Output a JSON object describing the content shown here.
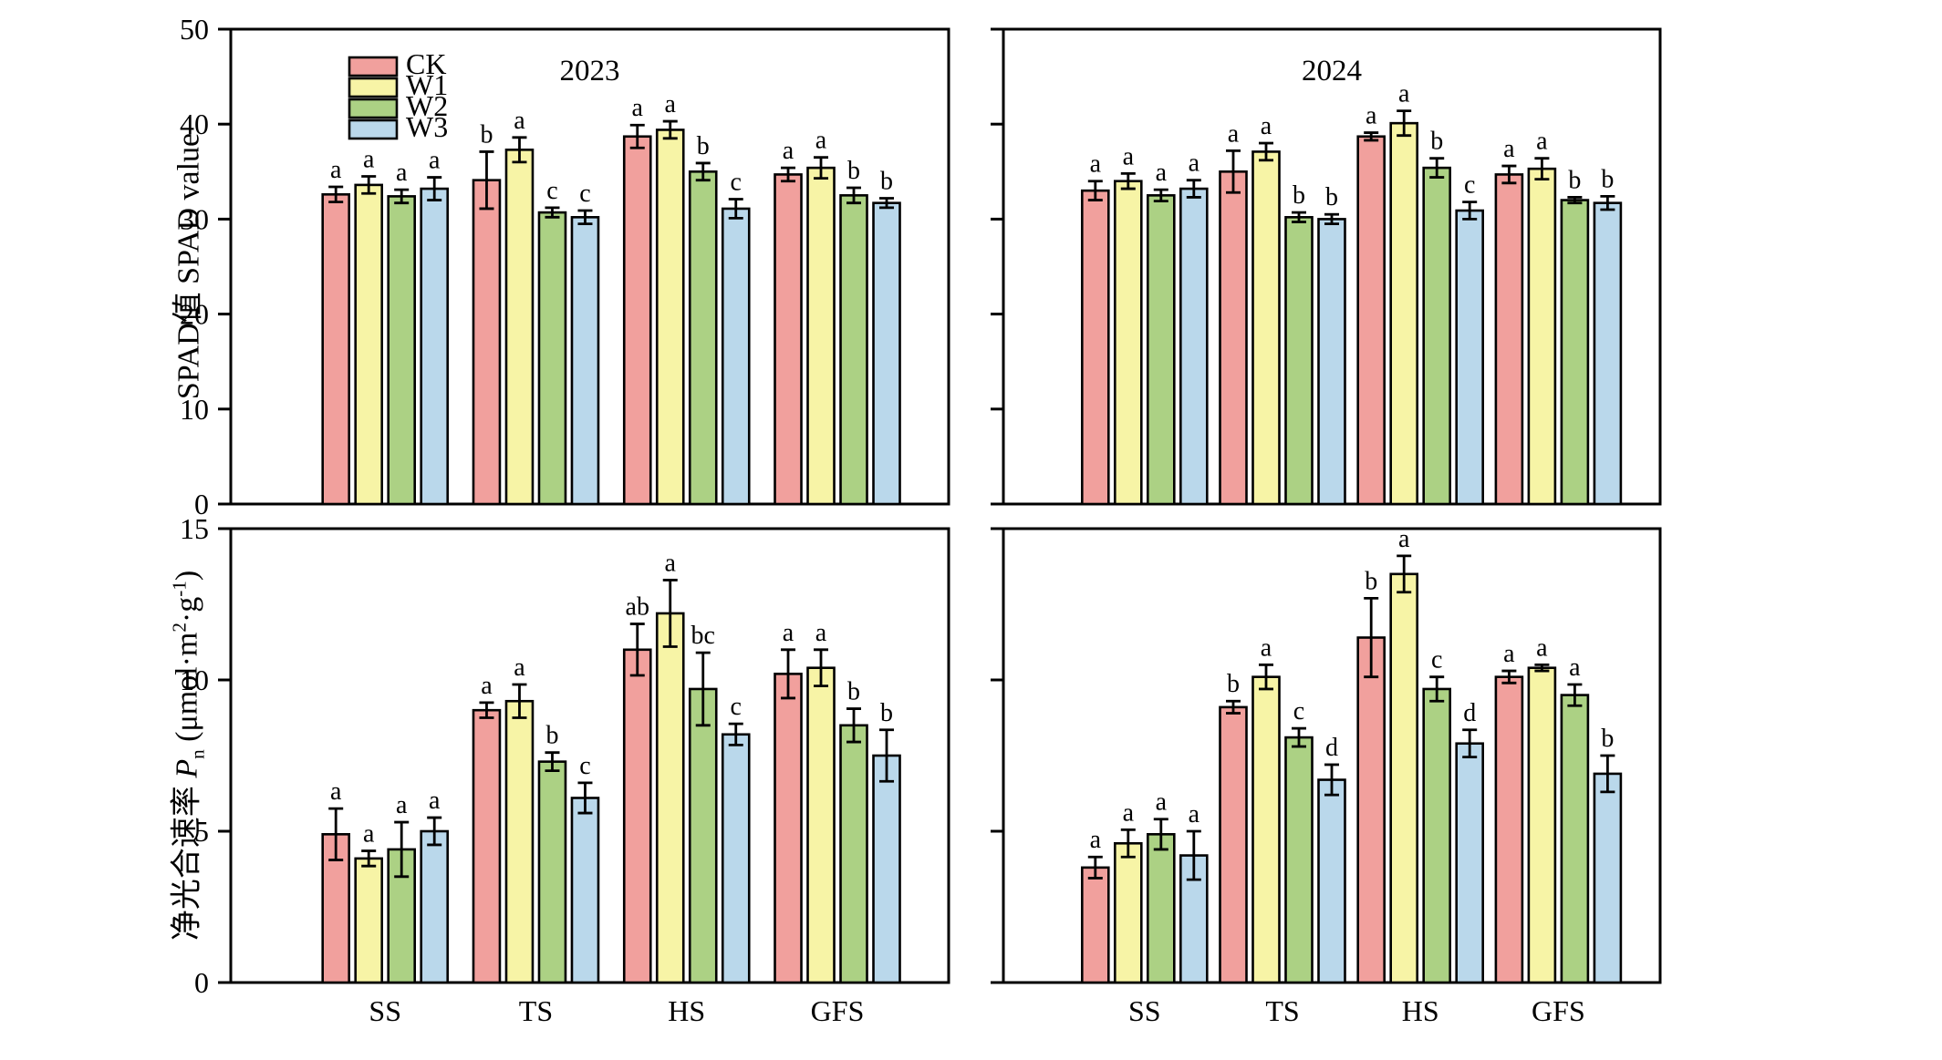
{
  "figure": {
    "ylabel_top": "SPAD值 SPAD value",
    "ylabel_bottom": {
      "prefix": "净光合速率 ",
      "var": "P",
      "var_sub": "n",
      "unit1": " (μmol·m",
      "sup1": "2",
      "unit2": "·g",
      "sup2": "-1",
      "close": ")"
    },
    "legend": {
      "items": [
        {
          "label": "CK",
          "color": "#F1A09D"
        },
        {
          "label": "W1",
          "color": "#F7F4A6"
        },
        {
          "label": "W2",
          "color": "#ACD184"
        },
        {
          "label": "W3",
          "color": "#BAD8EB"
        }
      ]
    },
    "outline_color": "#000000"
  },
  "chart_data": [
    {
      "panel_id": "spad-2023",
      "type": "bar",
      "title": "2023",
      "ylabel": "SPAD值 SPAD value",
      "ylim": [
        0,
        50
      ],
      "yticks": [
        0,
        10,
        20,
        30,
        40,
        50
      ],
      "show_ytick_labels": true,
      "show_xcat_labels": false,
      "legend_position": "upper-left-inside",
      "grid": false,
      "categories": [
        "SS",
        "TS",
        "HS",
        "GFS"
      ],
      "series": [
        {
          "name": "CK",
          "color": "#F1A09D",
          "values": [
            32.6,
            34.1,
            38.7,
            34.7
          ],
          "errors": [
            0.8,
            3.0,
            1.2,
            0.7
          ],
          "letters": [
            "a",
            "b",
            "a",
            "a"
          ]
        },
        {
          "name": "W1",
          "color": "#F7F4A6",
          "values": [
            33.6,
            37.3,
            39.4,
            35.4
          ],
          "errors": [
            0.9,
            1.3,
            0.9,
            1.1
          ],
          "letters": [
            "a",
            "a",
            "a",
            "a"
          ]
        },
        {
          "name": "W2",
          "color": "#ACD184",
          "values": [
            32.4,
            30.7,
            35.0,
            32.5
          ],
          "errors": [
            0.7,
            0.5,
            0.9,
            0.8
          ],
          "letters": [
            "a",
            "c",
            "b",
            "b"
          ]
        },
        {
          "name": "W3",
          "color": "#BAD8EB",
          "values": [
            33.2,
            30.2,
            31.1,
            31.7
          ],
          "errors": [
            1.2,
            0.7,
            1.0,
            0.5
          ],
          "letters": [
            "a",
            "c",
            "c",
            "b"
          ]
        }
      ]
    },
    {
      "panel_id": "spad-2024",
      "type": "bar",
      "title": "2024",
      "ylabel": "SPAD值 SPAD value",
      "ylim": [
        0,
        50
      ],
      "yticks": [
        0,
        10,
        20,
        30,
        40,
        50
      ],
      "show_ytick_labels": false,
      "show_xcat_labels": false,
      "grid": false,
      "categories": [
        "SS",
        "TS",
        "HS",
        "GFS"
      ],
      "series": [
        {
          "name": "CK",
          "color": "#F1A09D",
          "values": [
            33.0,
            35.0,
            38.7,
            34.7
          ],
          "errors": [
            1.0,
            2.2,
            0.4,
            0.9
          ],
          "letters": [
            "a",
            "a",
            "a",
            "a"
          ]
        },
        {
          "name": "W1",
          "color": "#F7F4A6",
          "values": [
            34.0,
            37.1,
            40.1,
            35.3
          ],
          "errors": [
            0.8,
            0.9,
            1.3,
            1.1
          ],
          "letters": [
            "a",
            "a",
            "a",
            "a"
          ]
        },
        {
          "name": "W2",
          "color": "#ACD184",
          "values": [
            32.5,
            30.2,
            35.4,
            32.0
          ],
          "errors": [
            0.6,
            0.5,
            1.0,
            0.3
          ],
          "letters": [
            "a",
            "b",
            "b",
            "b"
          ]
        },
        {
          "name": "W3",
          "color": "#BAD8EB",
          "values": [
            33.2,
            30.0,
            30.9,
            31.7
          ],
          "errors": [
            0.9,
            0.5,
            0.9,
            0.7
          ],
          "letters": [
            "a",
            "b",
            "c",
            "b"
          ]
        }
      ]
    },
    {
      "panel_id": "pn-2023",
      "type": "bar",
      "title": "",
      "ylabel": "净光合速率 Pn (μmol·m2·g-1)",
      "ylim": [
        0,
        15
      ],
      "yticks": [
        0,
        5,
        10,
        15
      ],
      "show_ytick_labels": true,
      "show_xcat_labels": true,
      "grid": false,
      "categories": [
        "SS",
        "TS",
        "HS",
        "GFS"
      ],
      "series": [
        {
          "name": "CK",
          "color": "#F1A09D",
          "values": [
            4.9,
            9.0,
            11.0,
            10.2
          ],
          "errors": [
            0.85,
            0.25,
            0.85,
            0.8
          ],
          "letters": [
            "a",
            "a",
            "ab",
            "a"
          ]
        },
        {
          "name": "W1",
          "color": "#F7F4A6",
          "values": [
            4.1,
            9.3,
            12.2,
            10.4
          ],
          "errors": [
            0.25,
            0.55,
            1.1,
            0.6
          ],
          "letters": [
            "a",
            "a",
            "a",
            "a"
          ]
        },
        {
          "name": "W2",
          "color": "#ACD184",
          "values": [
            4.4,
            7.3,
            9.7,
            8.5
          ],
          "errors": [
            0.9,
            0.3,
            1.2,
            0.55
          ],
          "letters": [
            "a",
            "b",
            "bc",
            "b"
          ]
        },
        {
          "name": "W3",
          "color": "#BAD8EB",
          "values": [
            5.0,
            6.1,
            8.2,
            7.5
          ],
          "errors": [
            0.45,
            0.5,
            0.35,
            0.85
          ],
          "letters": [
            "a",
            "c",
            "c",
            "b"
          ]
        }
      ]
    },
    {
      "panel_id": "pn-2024",
      "type": "bar",
      "title": "",
      "ylabel": "净光合速率 Pn (μmol·m2·g-1)",
      "ylim": [
        0,
        15
      ],
      "yticks": [
        0,
        5,
        10,
        15
      ],
      "show_ytick_labels": false,
      "show_xcat_labels": true,
      "grid": false,
      "categories": [
        "SS",
        "TS",
        "HS",
        "GFS"
      ],
      "series": [
        {
          "name": "CK",
          "color": "#F1A09D",
          "values": [
            3.8,
            9.1,
            11.4,
            10.1
          ],
          "errors": [
            0.35,
            0.2,
            1.3,
            0.2
          ],
          "letters": [
            "a",
            "b",
            "b",
            "a"
          ]
        },
        {
          "name": "W1",
          "color": "#F7F4A6",
          "values": [
            4.6,
            10.1,
            13.5,
            10.4
          ],
          "errors": [
            0.45,
            0.4,
            0.6,
            0.1
          ],
          "letters": [
            "a",
            "a",
            "a",
            "a"
          ]
        },
        {
          "name": "W2",
          "color": "#ACD184",
          "values": [
            4.9,
            8.1,
            9.7,
            9.5
          ],
          "errors": [
            0.5,
            0.3,
            0.4,
            0.35
          ],
          "letters": [
            "a",
            "c",
            "c",
            "a"
          ]
        },
        {
          "name": "W3",
          "color": "#BAD8EB",
          "values": [
            4.2,
            6.7,
            7.9,
            6.9
          ],
          "errors": [
            0.8,
            0.5,
            0.45,
            0.6
          ],
          "letters": [
            "a",
            "d",
            "d",
            "b"
          ]
        }
      ]
    }
  ]
}
